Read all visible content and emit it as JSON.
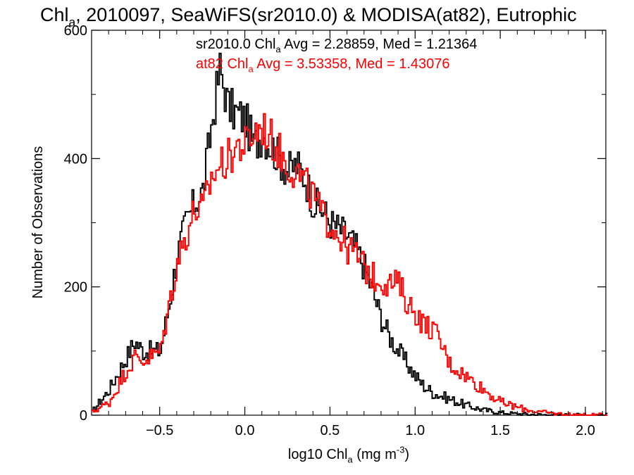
{
  "chart_data": {
    "type": "line",
    "title_parts": [
      "Chl",
      "a",
      ", 2010097, SeaWiFS(sr2010.0) & MODISA(at82), Eutrophic"
    ],
    "xlabel_parts": [
      "log10 Chl",
      "a",
      " (mg m",
      "-3",
      ")"
    ],
    "ylabel": "Number of Observations",
    "xlim": [
      -0.9,
      2.12
    ],
    "ylim": [
      0,
      600
    ],
    "xticks": [
      -0.5,
      0.0,
      0.5,
      1.0,
      1.5,
      2.0
    ],
    "xtick_labels": [
      "−0.5",
      "0.0",
      "0.5",
      "1.0",
      "1.5",
      "2.0"
    ],
    "yticks": [
      0,
      200,
      400,
      600
    ],
    "ytick_labels": [
      "0",
      "200",
      "400",
      "600"
    ],
    "bin_width": 0.01,
    "annotations": [
      {
        "parts": [
          "sr2010.0 Chl",
          "a",
          " Avg = 2.28859, Med = 1.21364"
        ],
        "color": "#000000"
      },
      {
        "parts": [
          "at82 Chl",
          "a",
          " Avg = 3.53358, Med = 1.43076"
        ],
        "color": "#ff0000"
      }
    ],
    "series": [
      {
        "color": "#000000",
        "x": [
          -0.9,
          -0.8,
          -0.7,
          -0.65,
          -0.6,
          -0.5,
          -0.45,
          -0.4,
          -0.35,
          -0.3,
          -0.25,
          -0.2,
          -0.15,
          -0.1,
          -0.05,
          0.0,
          0.05,
          0.1,
          0.15,
          0.2,
          0.25,
          0.3,
          0.35,
          0.4,
          0.45,
          0.5,
          0.55,
          0.6,
          0.65,
          0.7,
          0.75,
          0.8,
          0.85,
          0.9,
          0.95,
          1.0,
          1.05,
          1.1,
          1.2,
          1.3,
          1.4,
          1.5,
          1.6,
          1.7,
          1.8,
          1.9,
          2.0,
          2.1
        ],
        "values": [
          5,
          40,
          90,
          115,
          100,
          100,
          170,
          250,
          300,
          330,
          350,
          450,
          540,
          480,
          470,
          460,
          420,
          440,
          420,
          400,
          380,
          390,
          370,
          330,
          320,
          300,
          290,
          280,
          260,
          230,
          190,
          150,
          120,
          100,
          80,
          60,
          45,
          35,
          25,
          15,
          8,
          4,
          2,
          1,
          0,
          0,
          0,
          0
        ]
      },
      {
        "color": "#ff0000",
        "x": [
          -0.9,
          -0.8,
          -0.7,
          -0.65,
          -0.6,
          -0.5,
          -0.45,
          -0.4,
          -0.35,
          -0.3,
          -0.25,
          -0.2,
          -0.15,
          -0.1,
          -0.05,
          0.0,
          0.05,
          0.1,
          0.15,
          0.2,
          0.25,
          0.3,
          0.35,
          0.4,
          0.45,
          0.5,
          0.55,
          0.6,
          0.65,
          0.7,
          0.75,
          0.8,
          0.85,
          0.9,
          0.95,
          1.0,
          1.05,
          1.1,
          1.15,
          1.2,
          1.3,
          1.4,
          1.5,
          1.6,
          1.7,
          1.8,
          1.9,
          2.0,
          2.1
        ],
        "values": [
          5,
          20,
          70,
          90,
          85,
          100,
          170,
          240,
          280,
          320,
          320,
          370,
          390,
          400,
          420,
          420,
          440,
          450,
          430,
          410,
          390,
          380,
          360,
          340,
          310,
          300,
          280,
          260,
          250,
          230,
          215,
          210,
          205,
          205,
          175,
          160,
          140,
          135,
          110,
          80,
          60,
          40,
          20,
          12,
          6,
          3,
          1,
          0,
          0
        ]
      }
    ]
  }
}
